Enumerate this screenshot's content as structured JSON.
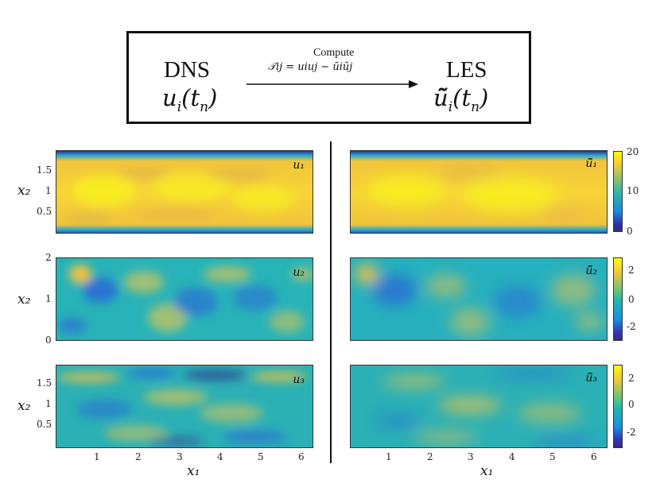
{
  "top": {
    "left_title": "DNS",
    "left_symbol": "u",
    "left_sub": "i",
    "left_arg": "(t",
    "left_arg_sub": "n",
    "left_arg_close": ")",
    "arrow_top": "Compute",
    "arrow_formula": "𝒯ij = uiuj − ũiũj",
    "right_title": "LES",
    "right_symbol": "ũ̃",
    "right_sub": "i",
    "right_arg": "(t",
    "right_arg_sub": "n",
    "right_arg_close": ")"
  },
  "panels": {
    "left_labels": [
      "u₁",
      "u₂",
      "u₃"
    ],
    "right_labels": [
      "ũ̃₁",
      "ũ̃₂",
      "ũ̃₃"
    ]
  },
  "axes": {
    "y_label": "x₂",
    "x_label": "x₁",
    "row1_yticks": [
      "1.5",
      "1",
      "0.5"
    ],
    "row2_yticks": [
      "2",
      "1",
      "0"
    ],
    "row3_yticks": [
      "1.5",
      "1",
      "0.5"
    ],
    "xticks": [
      "1",
      "2",
      "3",
      "4",
      "5",
      "6"
    ]
  },
  "colorbars": {
    "cb1": [
      "20",
      "10",
      "0"
    ],
    "cb2": [
      "2",
      "0",
      "-2"
    ],
    "cb3": [
      "2",
      "0",
      "-2"
    ]
  },
  "colors": {
    "yellow": "#f9fb0e",
    "orange": "#f6c23e",
    "teal": "#27b9a8",
    "cyan": "#1fa6d6",
    "blue": "#2b63d9",
    "navy": "#352a87"
  }
}
